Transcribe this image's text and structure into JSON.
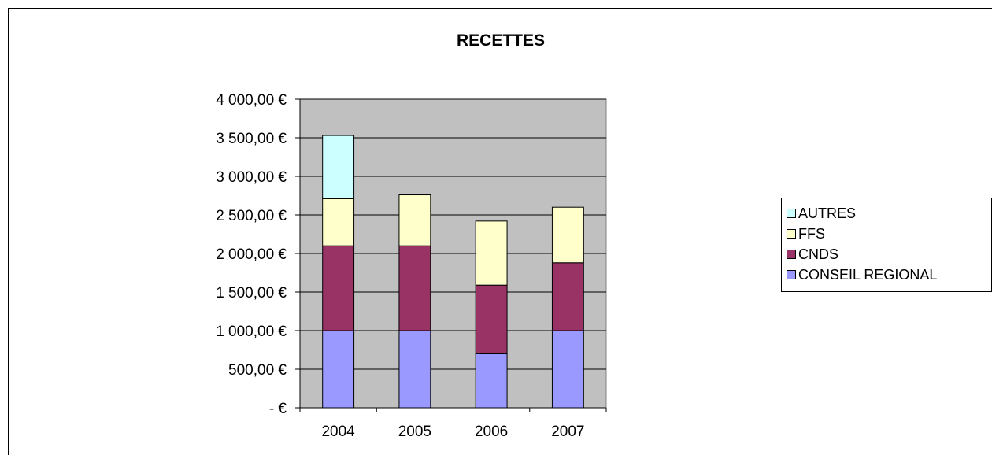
{
  "chart_data": {
    "type": "bar",
    "stacked": true,
    "title": "RECETTES",
    "categories": [
      "2004",
      "2005",
      "2006",
      "2007"
    ],
    "series": [
      {
        "name": "CONSEIL REGIONAL",
        "color": "#9999FF",
        "values": [
          1000,
          1000,
          700,
          1000
        ]
      },
      {
        "name": "CNDS",
        "color": "#993366",
        "values": [
          1100,
          1100,
          890,
          880
        ]
      },
      {
        "name": "FFS",
        "color": "#FFFFCC",
        "values": [
          610,
          660,
          830,
          720
        ]
      },
      {
        "name": "AUTRES",
        "color": "#CCFFFF",
        "values": [
          820,
          0,
          0,
          0
        ]
      }
    ],
    "ylim": [
      0,
      4000
    ],
    "yticks": [
      0,
      500,
      1000,
      1500,
      2000,
      2500,
      3000,
      3500,
      4000
    ],
    "ytick_labels": [
      "-    €",
      "500,00 €",
      "1 000,00 €",
      "1 500,00 €",
      "2 000,00 €",
      "2 500,00 €",
      "3 000,00 €",
      "3 500,00 €",
      "4 000,00 €"
    ],
    "plot_background": "#C0C0C0",
    "grid": true,
    "legend_position": "right",
    "legend_order": [
      "AUTRES",
      "FFS",
      "CNDS",
      "CONSEIL REGIONAL"
    ]
  }
}
